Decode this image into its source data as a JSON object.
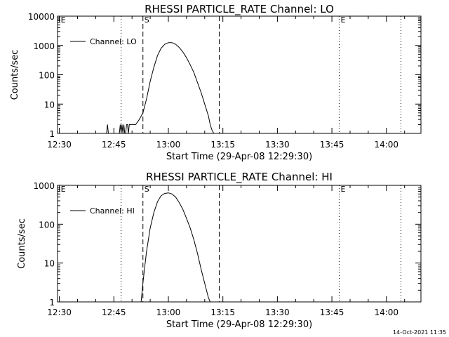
{
  "chart_data": [
    {
      "type": "line",
      "title": "RHESSI PARTICLE_RATE Channel: LO",
      "xlabel": "Start Time (29-Apr-08 12:29:30)",
      "ylabel": "Counts/sec",
      "yscale": "log",
      "xlim_minutes": [
        0,
        100
      ],
      "ylim": [
        1,
        10000
      ],
      "x_ticks": [
        "12:30",
        "12:45",
        "13:00",
        "13:15",
        "13:30",
        "13:45",
        "14:00"
      ],
      "y_ticks": [
        "1",
        "10",
        "100",
        "1000",
        "10000"
      ],
      "legend": "Channel: LO",
      "legend_position": "top-left",
      "markers": [
        {
          "label": "E",
          "time": "12:30",
          "style": "none"
        },
        {
          "label": "",
          "time": "12:47",
          "style": "dotted"
        },
        {
          "label": "S",
          "time": "12:53",
          "style": "dashed"
        },
        {
          "label": "",
          "time": "13:14",
          "style": "dashed"
        },
        {
          "label": "E",
          "time": "13:47",
          "style": "dotted"
        },
        {
          "label": "",
          "time": "14:04",
          "style": "dotted"
        }
      ],
      "series": [
        {
          "x": [
            "12:29:30",
            "12:43:00",
            "12:43:15",
            "12:43:30",
            "12:46:30",
            "12:46:45",
            "12:47:00",
            "12:47:15",
            "12:47:30",
            "12:47:45",
            "12:48:00",
            "12:48:15",
            "12:48:30",
            "12:48:45",
            "12:49:00",
            "12:49:15",
            "12:50:00",
            "12:51:00",
            "12:52:00",
            "12:53:00",
            "12:54:00",
            "12:55:00",
            "12:56:00",
            "12:57:00",
            "12:58:00",
            "12:59:00",
            "13:00:00",
            "13:01:00",
            "13:02:00",
            "13:03:00",
            "13:04:00",
            "13:05:00",
            "13:06:00",
            "13:07:00",
            "13:08:00",
            "13:09:00",
            "13:10:00",
            "13:11:00",
            "13:11:30",
            "13:12:00",
            "13:12:30"
          ],
          "y": [
            1,
            1,
            2,
            1,
            1,
            2,
            1,
            2,
            1,
            2,
            1,
            1,
            2,
            2,
            1,
            2,
            2,
            2,
            3,
            5,
            15,
            60,
            180,
            450,
            800,
            1100,
            1250,
            1250,
            1100,
            850,
            600,
            380,
            220,
            120,
            55,
            25,
            10,
            4,
            2,
            1.3,
            1
          ]
        }
      ]
    },
    {
      "type": "line",
      "title": "RHESSI PARTICLE_RATE Channel: HI",
      "xlabel": "Start Time (29-Apr-08 12:29:30)",
      "ylabel": "Counts/sec",
      "yscale": "log",
      "xlim_minutes": [
        0,
        100
      ],
      "ylim": [
        1,
        1000
      ],
      "x_ticks": [
        "12:30",
        "12:45",
        "13:00",
        "13:15",
        "13:30",
        "13:45",
        "14:00"
      ],
      "y_ticks": [
        "1",
        "10",
        "100",
        "1000"
      ],
      "legend": "Channel: HI",
      "legend_position": "top-left",
      "markers": [
        {
          "label": "E",
          "time": "12:30",
          "style": "none"
        },
        {
          "label": "",
          "time": "12:47",
          "style": "dotted"
        },
        {
          "label": "S",
          "time": "12:53",
          "style": "dashed"
        },
        {
          "label": "",
          "time": "13:14",
          "style": "dashed"
        },
        {
          "label": "E",
          "time": "13:47",
          "style": "dotted"
        },
        {
          "label": "",
          "time": "14:04",
          "style": "dotted"
        }
      ],
      "series": [
        {
          "x": [
            "12:52:30",
            "12:53:00",
            "12:53:30",
            "12:54:00",
            "12:55:00",
            "12:56:00",
            "12:57:00",
            "12:58:00",
            "12:59:00",
            "13:00:00",
            "13:01:00",
            "13:02:00",
            "13:03:00",
            "13:04:00",
            "13:05:00",
            "13:06:00",
            "13:07:00",
            "13:08:00",
            "13:09:00",
            "13:10:00",
            "13:11:00",
            "13:11:30"
          ],
          "y": [
            1,
            3,
            8,
            20,
            80,
            200,
            380,
            540,
            620,
            640,
            600,
            500,
            360,
            240,
            140,
            80,
            40,
            18,
            7,
            3,
            1.3,
            1
          ]
        }
      ]
    }
  ],
  "timestamp": "14-Oct-2021 11:35"
}
